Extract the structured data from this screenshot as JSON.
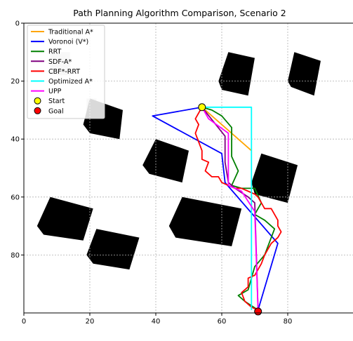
{
  "chart_data": {
    "type": "line",
    "title": "Path Planning Algorithm Comparison, Scenario 2",
    "xlabel": "",
    "ylabel": "",
    "xlim": [
      0,
      100
    ],
    "ylim": [
      100,
      0
    ],
    "xticks": [
      0,
      20,
      40,
      60,
      80
    ],
    "yticks": [
      0,
      20,
      40,
      60,
      80
    ],
    "grid": true,
    "legend_position": "top-left",
    "start": {
      "name": "Start",
      "x": 54,
      "y": 29,
      "color": "#ffff00"
    },
    "goal": {
      "name": "Goal",
      "x": 71,
      "y": 99.5,
      "color": "#ff0000"
    },
    "obstacles": [
      {
        "points": [
          [
            59,
            20
          ],
          [
            62,
            10
          ],
          [
            70,
            12
          ],
          [
            68,
            25
          ],
          [
            60,
            23
          ]
        ]
      },
      {
        "points": [
          [
            80,
            20
          ],
          [
            82,
            10
          ],
          [
            90,
            13
          ],
          [
            88,
            25
          ],
          [
            81,
            22
          ]
        ]
      },
      {
        "points": [
          [
            18,
            35
          ],
          [
            20,
            26
          ],
          [
            30,
            30
          ],
          [
            29,
            40
          ],
          [
            20,
            38
          ]
        ]
      },
      {
        "points": [
          [
            36,
            49
          ],
          [
            40,
            40
          ],
          [
            50,
            44
          ],
          [
            48,
            55
          ],
          [
            38,
            52
          ]
        ]
      },
      {
        "points": [
          [
            69,
            55
          ],
          [
            72,
            45
          ],
          [
            83,
            49
          ],
          [
            80,
            62
          ],
          [
            70,
            59
          ]
        ]
      },
      {
        "points": [
          [
            44,
            70
          ],
          [
            48,
            60
          ],
          [
            66,
            64
          ],
          [
            63,
            77
          ],
          [
            46,
            74
          ]
        ]
      },
      {
        "points": [
          [
            4,
            70
          ],
          [
            8,
            60
          ],
          [
            21,
            64
          ],
          [
            18,
            75
          ],
          [
            6,
            73
          ]
        ]
      },
      {
        "points": [
          [
            19,
            80
          ],
          [
            22,
            71
          ],
          [
            35,
            74
          ],
          [
            32,
            85
          ],
          [
            21,
            83
          ]
        ]
      }
    ],
    "light_patches": [
      {
        "points": [
          [
            8,
            10
          ],
          [
            14,
            10
          ],
          [
            14,
            18
          ],
          [
            8,
            18
          ]
        ]
      },
      {
        "points": [
          [
            19,
            26
          ],
          [
            22,
            26
          ],
          [
            22,
            33
          ],
          [
            19,
            33
          ]
        ]
      }
    ],
    "series": [
      {
        "name": "Traditional A*",
        "color": "#ffa500",
        "points": [
          [
            54,
            29
          ],
          [
            58,
            33
          ],
          [
            62,
            37
          ],
          [
            66,
            41
          ],
          [
            69,
            44
          ]
        ]
      },
      {
        "name": "Voronoi (V*)",
        "color": "#0000ff",
        "points": [
          [
            54,
            29
          ],
          [
            39,
            32
          ],
          [
            60,
            45
          ],
          [
            61,
            55
          ],
          [
            77,
            76
          ],
          [
            71,
            99
          ]
        ]
      },
      {
        "name": "RRT",
        "color": "#008000",
        "points": [
          [
            54,
            29
          ],
          [
            57,
            30
          ],
          [
            60,
            32
          ],
          [
            63,
            36
          ],
          [
            63,
            46
          ],
          [
            65,
            51
          ],
          [
            63,
            56
          ],
          [
            66,
            57
          ],
          [
            70,
            57
          ],
          [
            72,
            62
          ],
          [
            70,
            66
          ],
          [
            73,
            68
          ],
          [
            76,
            71
          ],
          [
            73,
            80
          ],
          [
            70,
            84
          ],
          [
            69,
            88
          ],
          [
            68,
            92
          ],
          [
            65,
            94
          ],
          [
            67,
            96
          ],
          [
            71,
            99
          ]
        ]
      },
      {
        "name": "SDF-A*",
        "color": "#800080",
        "points": [
          [
            54,
            29
          ],
          [
            61,
            39
          ],
          [
            61,
            48
          ],
          [
            62,
            55
          ],
          [
            64,
            57
          ],
          [
            68,
            60
          ],
          [
            70,
            62
          ],
          [
            71,
            99
          ]
        ]
      },
      {
        "name": "CBF*-RRT",
        "color": "#ff0000",
        "points": [
          [
            54,
            29
          ],
          [
            53,
            31
          ],
          [
            52,
            33
          ],
          [
            53,
            35
          ],
          [
            52,
            38
          ],
          [
            53,
            41
          ],
          [
            54,
            44
          ],
          [
            54,
            47
          ],
          [
            56,
            48
          ],
          [
            55,
            51
          ],
          [
            57,
            53
          ],
          [
            59,
            53
          ],
          [
            60,
            55
          ],
          [
            62,
            56
          ],
          [
            64,
            57
          ],
          [
            66,
            57
          ],
          [
            68,
            58
          ],
          [
            70,
            59
          ],
          [
            71,
            60
          ],
          [
            72,
            62
          ],
          [
            73,
            64
          ],
          [
            75,
            64
          ],
          [
            76,
            66
          ],
          [
            77,
            68
          ],
          [
            77,
            70
          ],
          [
            78,
            72
          ],
          [
            77,
            74
          ],
          [
            75,
            76
          ],
          [
            74,
            78
          ],
          [
            73,
            80
          ],
          [
            72,
            83
          ],
          [
            71,
            85
          ],
          [
            70,
            87
          ],
          [
            68,
            88
          ],
          [
            68,
            91
          ],
          [
            66,
            93
          ],
          [
            67,
            96
          ],
          [
            69,
            98
          ],
          [
            71,
            99
          ]
        ]
      },
      {
        "name": "Optimized A*",
        "color": "#00ffff",
        "points": [
          [
            54,
            29
          ],
          [
            69,
            29
          ],
          [
            69,
            99
          ]
        ]
      },
      {
        "name": "UPP",
        "color": "#ff00ff",
        "points": [
          [
            54,
            29
          ],
          [
            56,
            33
          ],
          [
            62,
            38
          ],
          [
            62,
            56
          ],
          [
            66,
            58
          ],
          [
            70,
            65
          ],
          [
            71,
            99
          ]
        ]
      }
    ]
  }
}
